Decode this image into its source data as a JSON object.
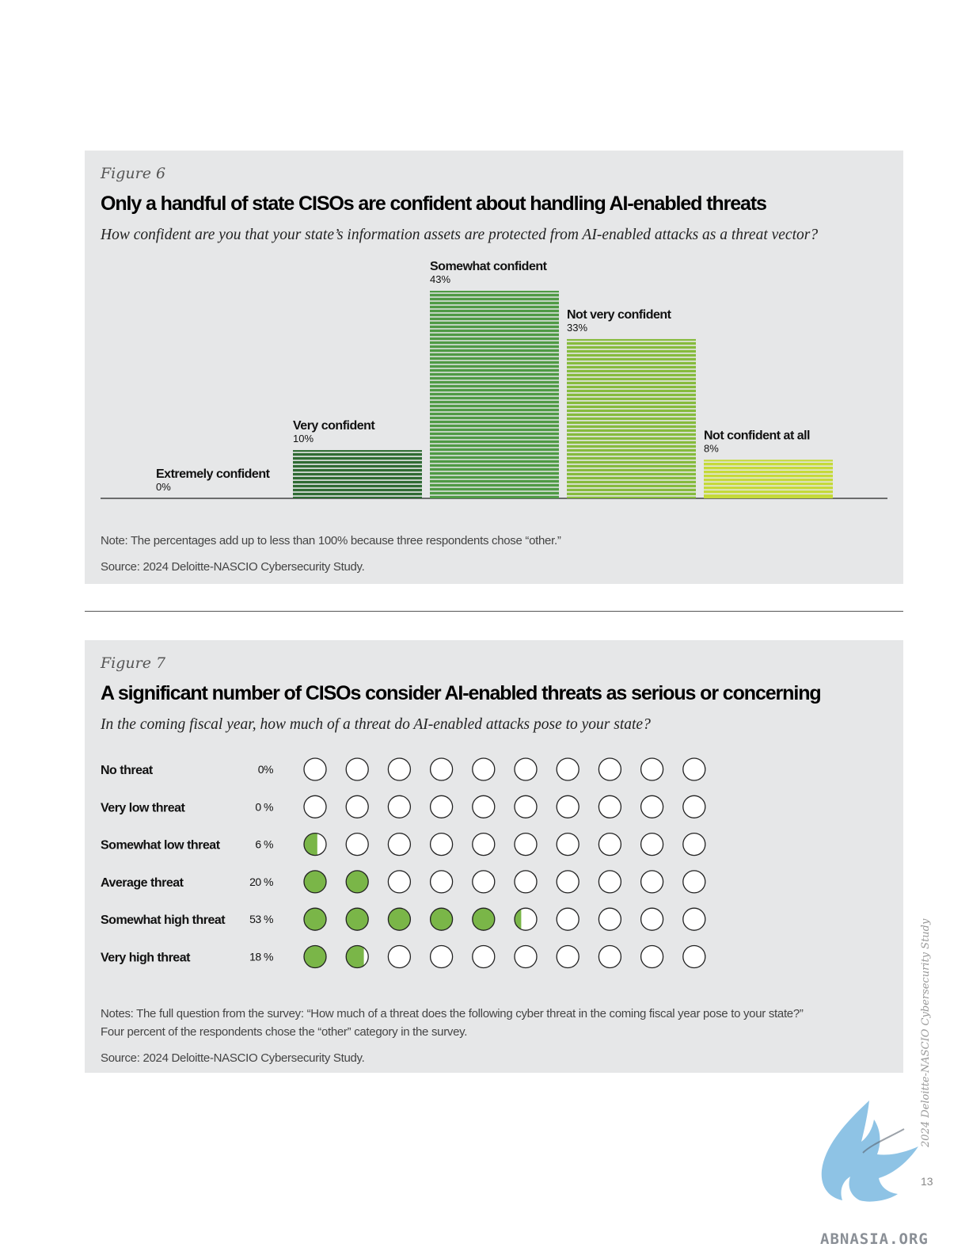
{
  "fig6": {
    "label": "Figure 6",
    "title": "Only a handful of state CISOs are confident about handling AI-enabled threats",
    "subtitle": "How confident are you that your state’s information assets are protected from AI-enabled attacks as a threat vector?",
    "note": "Note: The percentages add up to less than 100% because three respondents chose “other.”",
    "source": "Source: 2024 Deloitte-NASCIO Cybersecurity Study."
  },
  "fig7": {
    "label": "Figure 7",
    "title": "A  significant number of CISOs consider AI-enabled threats as serious or concerning",
    "subtitle": "In the coming fiscal year, how much of a threat do AI-enabled attacks pose to your state?",
    "notes_line1": "Notes: The full question from the survey: “How much of a threat does the following cyber threat in the coming fiscal year pose to your state?”",
    "notes_line2": "Four percent of the respondents chose the “other” category in the survey.",
    "source": "Source: 2024 Deloitte-NASCIO Cybersecurity Study."
  },
  "chart_data": [
    {
      "type": "bar",
      "categories": [
        "Extremely confident",
        "Very confident",
        "Somewhat confident",
        "Not very confident",
        "Not confident at all"
      ],
      "values": [
        0,
        10,
        43,
        33,
        8
      ],
      "value_labels": [
        "0%",
        "10%",
        "43%",
        "33%",
        "8%"
      ],
      "colors": [
        "#2f6b33",
        "#2f6b33",
        "#4f9a45",
        "#86bb3d",
        "#c5da3a"
      ],
      "ylim": [
        0,
        43
      ]
    },
    {
      "type": "dot_matrix",
      "dots_per_row": 10,
      "categories": [
        "No threat",
        "Very low threat",
        "Somewhat low threat",
        "Average threat",
        "Somewhat high threat",
        "Very high threat"
      ],
      "values": [
        0,
        0,
        6,
        20,
        53,
        18
      ],
      "value_labels": [
        "0%",
        "0 %",
        "6 %",
        "20 %",
        "53 %",
        "18 %"
      ],
      "fill_color": "#7ab648"
    }
  ],
  "page": {
    "side_text": "2024 Deloitte-NASCIO Cybersecurity Study",
    "page_number": "13",
    "watermark": "ABNASIA.ORG"
  }
}
